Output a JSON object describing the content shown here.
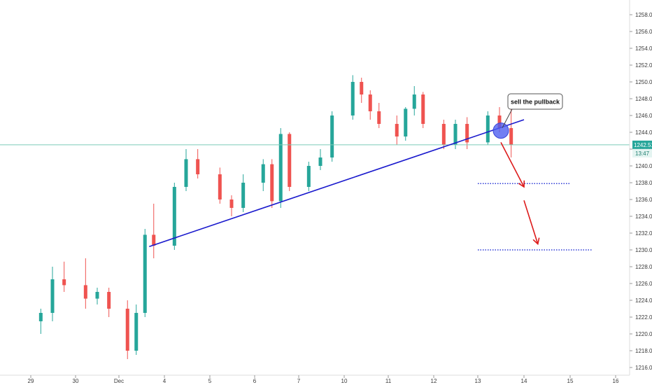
{
  "chart_data": {
    "type": "candlestick",
    "title": "",
    "xlabel": "",
    "ylabel": "",
    "ylim": [
      1215,
      1260
    ],
    "y_ticks": [
      1216,
      1218,
      1220,
      1222,
      1224,
      1226,
      1228,
      1230,
      1232,
      1234,
      1236,
      1238,
      1240,
      1242,
      1244,
      1246,
      1248,
      1250,
      1252,
      1254,
      1256,
      1258
    ],
    "y_tick_labels": [
      "1216.00",
      "1218.00",
      "1220.00",
      "1222.00",
      "1224.00",
      "1226.00",
      "1228.00",
      "1230.00",
      "1232.00",
      "1234.00",
      "1236.00",
      "1238.00",
      "1240.00",
      "1242.00",
      "1244.00",
      "1246.00",
      "1248.00",
      "1250.00",
      "1252.00",
      "1254.00",
      "1256.00",
      "1258.00"
    ],
    "x_tick_labels": [
      "29",
      "30",
      "Dec",
      "4",
      "5",
      "6",
      "7",
      "10",
      "11",
      "12",
      "13",
      "14",
      "15",
      "16"
    ],
    "grid": false,
    "colors": {
      "up": "#26a69a",
      "down": "#ef5350",
      "trendline": "#1a1acd",
      "arrow": "#dd1c1c",
      "level": "#2e3bd6",
      "price_line": "#7ccbb8",
      "marker": "#4f5ff0",
      "badge": "#26a69a"
    },
    "current_price": 1242.51,
    "current_price_label": "1242.51",
    "countdown_label": "13:47",
    "trendline": {
      "from": [
        "Dec 3",
        1230.4
      ],
      "to": [
        "Dec 14",
        1245.5
      ]
    },
    "levels": [
      {
        "price": 1237.9,
        "from": "Dec 13",
        "to": "Dec 15"
      },
      {
        "price": 1230.0,
        "from": "Dec 13",
        "to": "Dec 15.5"
      }
    ],
    "arrows": [
      {
        "from": [
          "Dec 13.5",
          1242.8
        ],
        "to": [
          "Dec 14",
          1237.5
        ]
      },
      {
        "from": [
          "Dec 14",
          1235.9
        ],
        "to": [
          "Dec 14.3",
          1230.7
        ]
      }
    ],
    "marker": {
      "at": [
        "Dec 13.5",
        1244.2
      ]
    },
    "annotation": {
      "text": "sell the pullback",
      "anchor": [
        "Dec 13.5",
        1244.2
      ]
    },
    "series": [
      {
        "x": "Nov 29",
        "open": 1221.5,
        "high": 1223.0,
        "low": 1220.0,
        "close": 1222.5
      },
      {
        "x": "Nov 29",
        "open": 1222.5,
        "high": 1228.0,
        "low": 1221.5,
        "close": 1226.5
      },
      {
        "x": "Nov 29",
        "open": 1226.5,
        "high": 1228.6,
        "low": 1225.0,
        "close": 1225.8
      },
      {
        "x": "Nov 30",
        "open": 1225.8,
        "high": 1229.0,
        "low": 1223.0,
        "close": 1224.2
      },
      {
        "x": "Nov 30",
        "open": 1224.2,
        "high": 1225.5,
        "low": 1223.5,
        "close": 1225.0
      },
      {
        "x": "Nov 30",
        "open": 1225.0,
        "high": 1225.5,
        "low": 1222.0,
        "close": 1223.0
      },
      {
        "x": "Dec 1",
        "open": 1223.0,
        "high": 1224.0,
        "low": 1217.0,
        "close": 1218.0
      },
      {
        "x": "Dec 1",
        "open": 1218.0,
        "high": 1223.5,
        "low": 1217.5,
        "close": 1222.5
      },
      {
        "x": "Dec 1",
        "open": 1222.5,
        "high": 1232.5,
        "low": 1222.0,
        "close": 1231.8
      },
      {
        "x": "Dec 1",
        "open": 1231.8,
        "high": 1235.5,
        "low": 1229.0,
        "close": 1230.5
      },
      {
        "x": "Dec 4",
        "open": 1230.5,
        "high": 1238.0,
        "low": 1230.0,
        "close": 1237.5
      },
      {
        "x": "Dec 4",
        "open": 1237.5,
        "high": 1242.0,
        "low": 1237.0,
        "close": 1240.8
      },
      {
        "x": "Dec 4",
        "open": 1240.8,
        "high": 1242.0,
        "low": 1238.5,
        "close": 1239.0
      },
      {
        "x": "Dec 5",
        "open": 1239.0,
        "high": 1239.8,
        "low": 1235.5,
        "close": 1236.0
      },
      {
        "x": "Dec 5",
        "open": 1236.0,
        "high": 1236.5,
        "low": 1234.0,
        "close": 1235.0
      },
      {
        "x": "Dec 5",
        "open": 1235.0,
        "high": 1239.0,
        "low": 1234.5,
        "close": 1238.0
      },
      {
        "x": "Dec 6",
        "open": 1238.0,
        "high": 1240.8,
        "low": 1237.0,
        "close": 1240.2
      },
      {
        "x": "Dec 6",
        "open": 1240.2,
        "high": 1240.8,
        "low": 1235.0,
        "close": 1235.8
      },
      {
        "x": "Dec 6",
        "open": 1235.8,
        "high": 1244.5,
        "low": 1235.0,
        "close": 1243.8
      },
      {
        "x": "Dec 6",
        "open": 1243.8,
        "high": 1244.0,
        "low": 1237.0,
        "close": 1237.5
      },
      {
        "x": "Dec 7",
        "open": 1237.5,
        "high": 1240.5,
        "low": 1237.0,
        "close": 1240.0
      },
      {
        "x": "Dec 7",
        "open": 1240.0,
        "high": 1242.0,
        "low": 1239.5,
        "close": 1241.0
      },
      {
        "x": "Dec 7",
        "open": 1241.0,
        "high": 1246.5,
        "low": 1240.5,
        "close": 1246.0
      },
      {
        "x": "Dec 10",
        "open": 1246.0,
        "high": 1250.8,
        "low": 1245.5,
        "close": 1250.0
      },
      {
        "x": "Dec 10",
        "open": 1250.0,
        "high": 1250.5,
        "low": 1247.5,
        "close": 1248.5
      },
      {
        "x": "Dec 10",
        "open": 1248.5,
        "high": 1249.0,
        "low": 1245.5,
        "close": 1246.5
      },
      {
        "x": "Dec 10",
        "open": 1246.5,
        "high": 1247.5,
        "low": 1244.5,
        "close": 1245.0
      },
      {
        "x": "Dec 11",
        "open": 1245.0,
        "high": 1246.0,
        "low": 1242.5,
        "close": 1243.5
      },
      {
        "x": "Dec 11",
        "open": 1243.5,
        "high": 1247.0,
        "low": 1243.0,
        "close": 1246.8
      },
      {
        "x": "Dec 11",
        "open": 1246.8,
        "high": 1249.5,
        "low": 1246.0,
        "close": 1248.5
      },
      {
        "x": "Dec 11",
        "open": 1248.5,
        "high": 1248.8,
        "low": 1244.5,
        "close": 1245.0
      },
      {
        "x": "Dec 12",
        "open": 1245.0,
        "high": 1245.5,
        "low": 1242.0,
        "close": 1242.5
      },
      {
        "x": "Dec 12",
        "open": 1242.5,
        "high": 1245.5,
        "low": 1242.0,
        "close": 1245.0
      },
      {
        "x": "Dec 12",
        "open": 1245.0,
        "high": 1245.8,
        "low": 1242.0,
        "close": 1242.8
      },
      {
        "x": "Dec 13",
        "open": 1242.8,
        "high": 1246.5,
        "low": 1242.5,
        "close": 1246.0
      },
      {
        "x": "Dec 13",
        "open": 1246.0,
        "high": 1247.0,
        "low": 1244.0,
        "close": 1244.5
      },
      {
        "x": "Dec 13",
        "open": 1244.5,
        "high": 1246.8,
        "low": 1241.0,
        "close": 1242.5
      }
    ]
  }
}
